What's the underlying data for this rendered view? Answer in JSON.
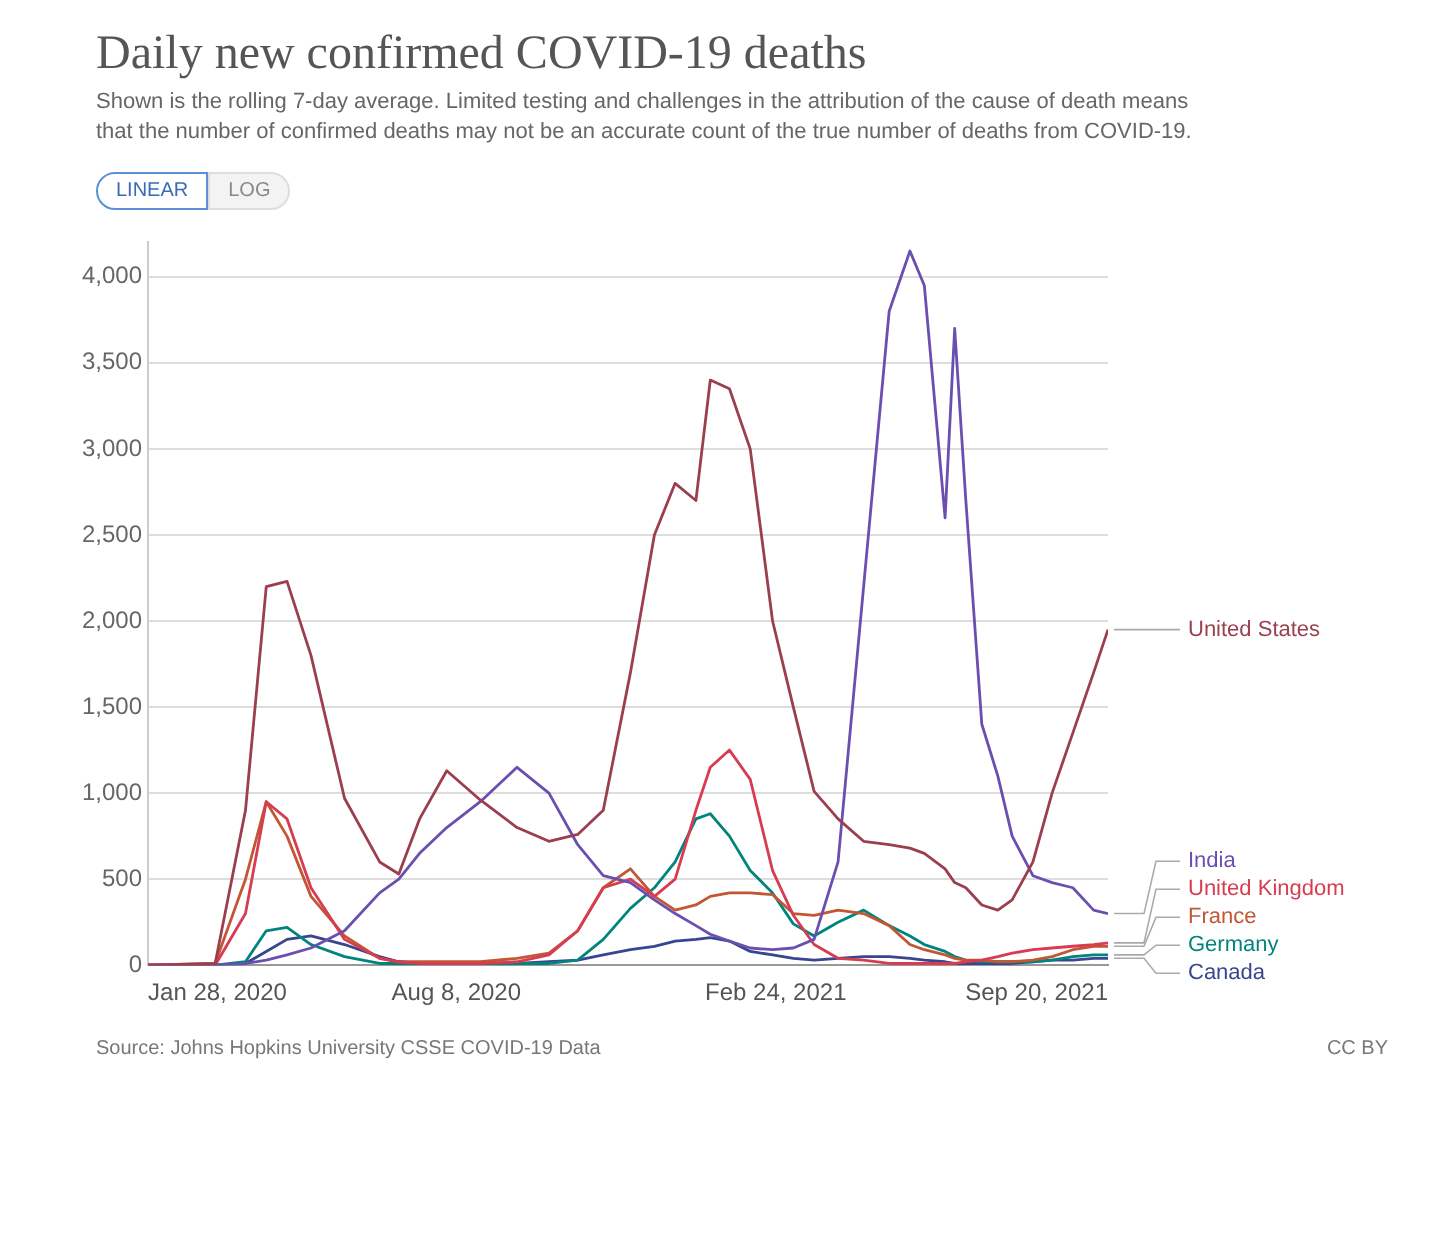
{
  "chart_data": {
    "type": "line",
    "title": "Daily new confirmed COVID-19 deaths",
    "subtitle": "Shown is the rolling 7-day average. Limited testing and challenges in the attribution of the cause of death means that the number of confirmed deaths may not be an accurate count of the true number of deaths from COVID-19.",
    "annotations": [
      "LINEAR",
      "LOG",
      "Source: Johns Hopkins University CSSE COVID-19 Data",
      "CC BY"
    ],
    "x": [
      "2020-01-28",
      "2020-03-10",
      "2020-03-29",
      "2020-04-11",
      "2020-04-24",
      "2020-05-09",
      "2020-05-30",
      "2020-06-21",
      "2020-07-03",
      "2020-07-16",
      "2020-08-02",
      "2020-08-23",
      "2020-09-15",
      "2020-10-05",
      "2020-10-23",
      "2020-11-08",
      "2020-11-25",
      "2020-12-10",
      "2020-12-23",
      "2021-01-05",
      "2021-01-14",
      "2021-01-26",
      "2021-02-08",
      "2021-02-22",
      "2021-03-07",
      "2021-03-20",
      "2021-04-04",
      "2021-04-20",
      "2021-05-06",
      "2021-05-19",
      "2021-05-28",
      "2021-06-10",
      "2021-06-16",
      "2021-06-23",
      "2021-07-03",
      "2021-07-13",
      "2021-07-22",
      "2021-08-04",
      "2021-08-16",
      "2021-08-29",
      "2021-09-11",
      "2021-09-20"
    ],
    "series": [
      {
        "name": "United States",
        "color": "#9b3f4e",
        "values": [
          0,
          10,
          900,
          2200,
          2230,
          1800,
          970,
          600,
          530,
          850,
          1130,
          960,
          800,
          720,
          760,
          900,
          1700,
          2500,
          2800,
          2700,
          3400,
          3350,
          3000,
          2000,
          1500,
          1010,
          850,
          720,
          700,
          680,
          650,
          560,
          480,
          450,
          350,
          320,
          380,
          600,
          1000,
          1350,
          1700,
          1950
        ]
      },
      {
        "name": "India",
        "color": "#6b4fb0",
        "values": [
          0,
          0,
          10,
          30,
          60,
          100,
          200,
          420,
          500,
          650,
          800,
          950,
          1150,
          1000,
          700,
          520,
          480,
          380,
          300,
          230,
          180,
          140,
          100,
          90,
          100,
          150,
          600,
          2200,
          3800,
          4150,
          3950,
          2600,
          3700,
          2700,
          1400,
          1100,
          750,
          520,
          480,
          450,
          320,
          300
        ]
      },
      {
        "name": "United Kingdom",
        "color": "#d73c50",
        "values": [
          0,
          0,
          300,
          950,
          850,
          450,
          150,
          40,
          20,
          10,
          10,
          10,
          20,
          60,
          200,
          450,
          500,
          400,
          500,
          900,
          1150,
          1250,
          1080,
          550,
          290,
          120,
          40,
          30,
          10,
          10,
          10,
          10,
          10,
          20,
          30,
          50,
          70,
          90,
          100,
          110,
          120,
          130
        ]
      },
      {
        "name": "France",
        "color": "#c15734",
        "values": [
          0,
          10,
          500,
          950,
          750,
          400,
          170,
          40,
          20,
          20,
          20,
          20,
          40,
          70,
          200,
          450,
          560,
          400,
          320,
          350,
          400,
          420,
          420,
          410,
          300,
          290,
          320,
          300,
          230,
          120,
          90,
          60,
          40,
          30,
          30,
          20,
          20,
          30,
          50,
          90,
          110,
          110
        ]
      },
      {
        "name": "Germany",
        "color": "#00847e",
        "values": [
          0,
          0,
          20,
          200,
          220,
          120,
          50,
          10,
          10,
          10,
          10,
          10,
          10,
          10,
          30,
          150,
          330,
          450,
          600,
          850,
          880,
          750,
          550,
          420,
          240,
          170,
          250,
          320,
          230,
          170,
          120,
          80,
          50,
          30,
          20,
          20,
          20,
          20,
          30,
          50,
          60,
          60
        ]
      },
      {
        "name": "Canada",
        "color": "#38468f",
        "values": [
          0,
          0,
          10,
          80,
          150,
          170,
          120,
          50,
          20,
          10,
          10,
          10,
          10,
          20,
          30,
          60,
          90,
          110,
          140,
          150,
          160,
          140,
          80,
          60,
          40,
          30,
          40,
          50,
          50,
          40,
          30,
          20,
          10,
          10,
          10,
          10,
          10,
          20,
          30,
          30,
          40,
          40
        ]
      }
    ],
    "xlim": [
      "2020-01-28",
      "2021-09-20"
    ],
    "xticks": [
      {
        "value": "2020-01-28",
        "label": "Jan 28, 2020"
      },
      {
        "value": "2020-08-08",
        "label": "Aug 8, 2020"
      },
      {
        "value": "2021-02-24",
        "label": "Feb 24, 2021"
      },
      {
        "value": "2021-09-20",
        "label": "Sep 20, 2021"
      }
    ],
    "ylim": [
      0,
      4200
    ],
    "yticks": [
      0,
      500,
      {
        "value": 1000,
        "label": "1,000"
      },
      {
        "value": 1500,
        "label": "1,500"
      },
      {
        "value": 2000,
        "label": "2,000"
      },
      {
        "value": 2500,
        "label": "2,500"
      },
      {
        "value": 3000,
        "label": "3,000"
      },
      {
        "value": 3500,
        "label": "3,500"
      },
      {
        "value": 4000,
        "label": "4,000"
      }
    ],
    "grid": "y",
    "legend": "right",
    "line_style": "solid"
  }
}
